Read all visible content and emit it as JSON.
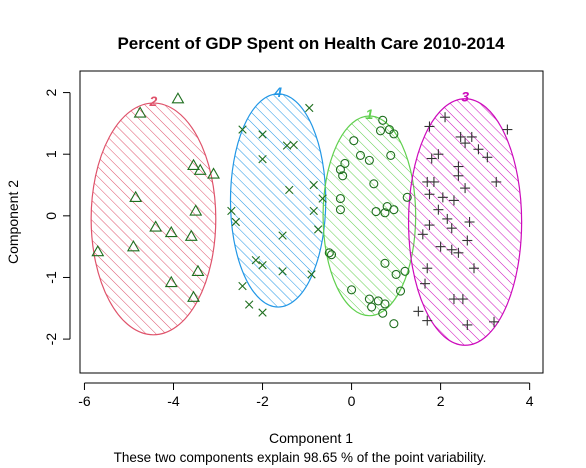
{
  "chart_data": {
    "type": "scatter",
    "title": "Percent of GDP Spent on Health Care 2010-2014",
    "xlabel": "Component 1",
    "ylabel": "Component 2",
    "subtitle": "These two components explain 98.65 % of the point variability.",
    "xlim": [
      -6.1,
      4.3
    ],
    "ylim": [
      -2.55,
      2.35
    ],
    "x_ticks": [
      -6,
      -4,
      -2,
      0,
      2,
      4
    ],
    "y_ticks": [
      -2,
      -1,
      0,
      1,
      2
    ],
    "grid": false,
    "clusters": [
      {
        "label": "2",
        "color": "#DF536B",
        "marker": "triangle",
        "ellipse": {
          "cx": -4.45,
          "cy": -0.05,
          "rx": 1.4,
          "ry": 1.88
        },
        "points": [
          [
            -4.75,
            1.67
          ],
          [
            -3.9,
            1.9
          ],
          [
            -3.55,
            0.82
          ],
          [
            -3.4,
            0.74
          ],
          [
            -3.1,
            0.68
          ],
          [
            -4.85,
            0.3
          ],
          [
            -3.5,
            0.08
          ],
          [
            -4.4,
            -0.18
          ],
          [
            -4.05,
            -0.27
          ],
          [
            -3.6,
            -0.33
          ],
          [
            -4.9,
            -0.5
          ],
          [
            -5.7,
            -0.58
          ],
          [
            -3.45,
            -0.9
          ],
          [
            -4.05,
            -1.08
          ],
          [
            -3.55,
            -1.32
          ]
        ]
      },
      {
        "label": "4",
        "color": "#2297E6",
        "marker": "x",
        "ellipse": {
          "cx": -1.65,
          "cy": 0.25,
          "rx": 1.07,
          "ry": 1.73
        },
        "points": [
          [
            -2.45,
            1.4
          ],
          [
            -2.0,
            1.32
          ],
          [
            -1.45,
            1.14
          ],
          [
            -0.95,
            1.75
          ],
          [
            -1.3,
            1.15
          ],
          [
            -2.0,
            0.92
          ],
          [
            -1.4,
            0.42
          ],
          [
            -0.85,
            0.5
          ],
          [
            -0.65,
            0.28
          ],
          [
            -2.7,
            0.08
          ],
          [
            -0.85,
            0.08
          ],
          [
            -2.6,
            -0.1
          ],
          [
            -0.75,
            -0.22
          ],
          [
            -1.55,
            -0.32
          ],
          [
            -2.15,
            -0.72
          ],
          [
            -2.0,
            -0.8
          ],
          [
            -1.55,
            -0.9
          ],
          [
            -0.9,
            -0.95
          ],
          [
            -2.45,
            -1.14
          ],
          [
            -2.3,
            -1.44
          ],
          [
            -2.0,
            -1.57
          ]
        ]
      },
      {
        "label": "1",
        "color": "#61D04F",
        "marker": "circle",
        "ellipse": {
          "cx": 0.4,
          "cy": 0.0,
          "rx": 1.04,
          "ry": 1.62
        },
        "points": [
          [
            0.7,
            1.55
          ],
          [
            0.85,
            1.4
          ],
          [
            0.65,
            1.38
          ],
          [
            0.95,
            1.33
          ],
          [
            0.05,
            1.22
          ],
          [
            0.2,
            0.98
          ],
          [
            0.88,
            0.98
          ],
          [
            -0.15,
            0.85
          ],
          [
            0.4,
            0.9
          ],
          [
            -0.25,
            0.75
          ],
          [
            0.5,
            0.52
          ],
          [
            -0.2,
            0.65
          ],
          [
            1.25,
            0.3
          ],
          [
            -0.25,
            0.28
          ],
          [
            0.8,
            0.15
          ],
          [
            0.55,
            0.07
          ],
          [
            0.95,
            0.1
          ],
          [
            0.75,
            0.05
          ],
          [
            -0.25,
            0.1
          ],
          [
            -0.5,
            -0.6
          ],
          [
            -0.45,
            -0.63
          ],
          [
            0.75,
            -0.77
          ],
          [
            1.2,
            -0.9
          ],
          [
            1.0,
            -0.95
          ],
          [
            0.0,
            -1.2
          ],
          [
            1.1,
            -1.22
          ],
          [
            0.4,
            -1.35
          ],
          [
            0.6,
            -1.38
          ],
          [
            0.75,
            -1.43
          ],
          [
            0.45,
            -1.48
          ],
          [
            0.7,
            -1.58
          ],
          [
            0.95,
            -1.75
          ]
        ]
      },
      {
        "label": "3",
        "color": "#CD0BBC",
        "marker": "plus",
        "ellipse": {
          "cx": 2.55,
          "cy": -0.1,
          "rx": 1.27,
          "ry": 2.0
        },
        "points": [
          [
            2.1,
            1.6
          ],
          [
            1.75,
            1.45
          ],
          [
            2.45,
            1.28
          ],
          [
            2.7,
            1.28
          ],
          [
            3.5,
            1.4
          ],
          [
            1.95,
            1.0
          ],
          [
            2.85,
            1.08
          ],
          [
            2.55,
            1.18
          ],
          [
            2.4,
            0.8
          ],
          [
            3.05,
            0.95
          ],
          [
            1.8,
            0.93
          ],
          [
            2.4,
            0.65
          ],
          [
            1.85,
            0.55
          ],
          [
            3.25,
            0.55
          ],
          [
            1.7,
            0.55
          ],
          [
            2.55,
            0.45
          ],
          [
            1.75,
            0.35
          ],
          [
            2.3,
            0.25
          ],
          [
            2.05,
            0.3
          ],
          [
            1.95,
            0.1
          ],
          [
            2.15,
            -0.05
          ],
          [
            2.65,
            -0.1
          ],
          [
            1.75,
            -0.15
          ],
          [
            2.25,
            -0.2
          ],
          [
            1.6,
            -0.3
          ],
          [
            2.6,
            -0.4
          ],
          [
            2.0,
            -0.5
          ],
          [
            2.25,
            -0.55
          ],
          [
            2.4,
            -0.6
          ],
          [
            1.7,
            -0.85
          ],
          [
            2.75,
            -0.85
          ],
          [
            1.65,
            -1.1
          ],
          [
            2.3,
            -1.35
          ],
          [
            1.5,
            -1.55
          ],
          [
            2.5,
            -1.35
          ],
          [
            1.7,
            -1.7
          ],
          [
            2.6,
            -1.77
          ],
          [
            3.2,
            -1.72
          ]
        ]
      }
    ]
  }
}
